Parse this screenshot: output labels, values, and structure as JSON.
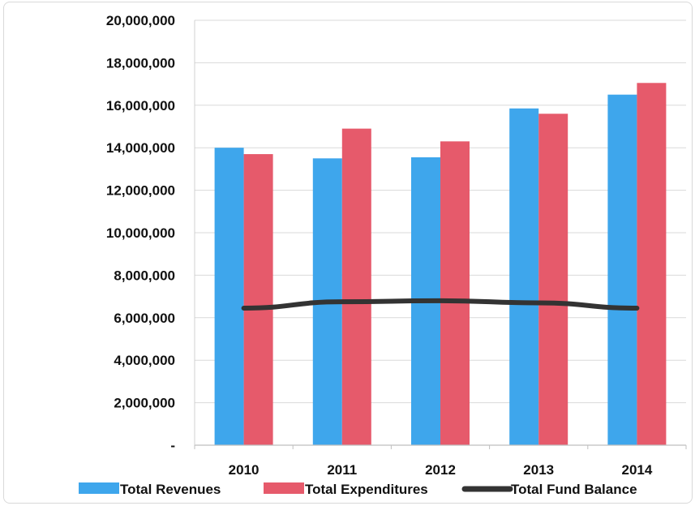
{
  "chart_data": {
    "type": "bar",
    "categories": [
      "2010",
      "2011",
      "2012",
      "2013",
      "2014"
    ],
    "series": [
      {
        "name": "Total Revenues",
        "kind": "bar",
        "color": "#3ea6ec",
        "values": [
          14000000,
          13500000,
          13550000,
          15850000,
          16500000
        ]
      },
      {
        "name": "Total Expenditures",
        "kind": "bar",
        "color": "#e65a6b",
        "values": [
          13700000,
          14900000,
          14300000,
          15600000,
          17050000
        ]
      },
      {
        "name": "Total Fund Balance",
        "kind": "line",
        "color": "#333333",
        "values": [
          6450000,
          6750000,
          6800000,
          6700000,
          6450000
        ]
      }
    ],
    "y_ticks": [
      "-",
      "2,000,000",
      "4,000,000",
      "6,000,000",
      "8,000,000",
      "10,000,000",
      "12,000,000",
      "14,000,000",
      "16,000,000",
      "18,000,000",
      "20,000,000"
    ],
    "ylim": [
      0,
      20000000
    ],
    "grid": true,
    "legend_position": "bottom",
    "title": "",
    "xlabel": "",
    "ylabel": ""
  }
}
